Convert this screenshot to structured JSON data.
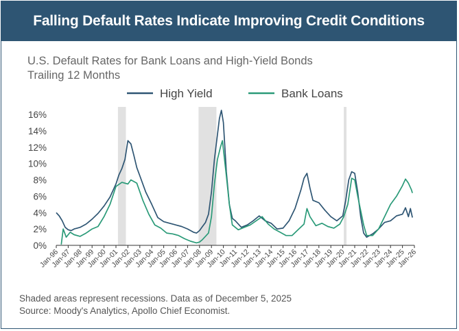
{
  "header": {
    "title": "Falling Default Rates Indicate Improving Credit Conditions"
  },
  "subtitle": {
    "line1": "U.S. Default Rates for Bank Loans and High-Yield Bonds",
    "line2": "Trailing 12 Months"
  },
  "notes": {
    "line1": "Shaded areas represent recessions. Data as of December 5, 2025",
    "line2": "Source: Moody's Analytics, Apollo Chief Economist."
  },
  "colors": {
    "banner": "#2e5573",
    "high_yield": "#2e5573",
    "bank_loans": "#2a9a78",
    "recession": "#e1e1e1"
  },
  "chart_data": {
    "type": "line",
    "title": "U.S. Default Rates for Bank Loans and High-Yield Bonds",
    "subtitle": "Trailing 12 Months",
    "xlabel": "",
    "ylabel": "",
    "xlim": [
      "1996-01",
      "2026-01"
    ],
    "ylim": [
      0,
      16
    ],
    "y_ticks": [
      "0%",
      "2%",
      "4%",
      "6%",
      "8%",
      "10%",
      "12%",
      "14%",
      "16%"
    ],
    "x_ticks": [
      "Jan-96",
      "Jan-97",
      "Jan-98",
      "Jan-99",
      "Jan-00",
      "Jan-01",
      "Jan-02",
      "Jan-03",
      "Jan-04",
      "Jan-05",
      "Jan-06",
      "Jan-07",
      "Jan-08",
      "Jan-09",
      "Jan-10",
      "Jan-11",
      "Jan-12",
      "Jan-13",
      "Jan-14",
      "Jan-15",
      "Jan-16",
      "Jan-17",
      "Jan-18",
      "Jan-19",
      "Jan-20",
      "Jan-21",
      "Jan-22",
      "Jan-23",
      "Jan-24",
      "Jan-25",
      "Jan-26"
    ],
    "legend_position": "top",
    "grid": false,
    "recessions": [
      [
        "2001-03",
        "2001-11"
      ],
      [
        "2007-12",
        "2009-06"
      ],
      [
        "2020-02",
        "2020-04"
      ]
    ],
    "series": [
      {
        "name": "High Yield",
        "points": [
          [
            "1996-01",
            4.0
          ],
          [
            "1996-04",
            3.6
          ],
          [
            "1996-07",
            3.0
          ],
          [
            "1996-10",
            2.2
          ],
          [
            "1997-01",
            1.9
          ],
          [
            "1997-04",
            1.8
          ],
          [
            "1997-07",
            2.0
          ],
          [
            "1997-10",
            2.1
          ],
          [
            "1998-01",
            2.2
          ],
          [
            "1998-07",
            2.6
          ],
          [
            "1999-01",
            3.2
          ],
          [
            "1999-07",
            3.9
          ],
          [
            "2000-01",
            4.8
          ],
          [
            "2000-07",
            5.9
          ],
          [
            "2001-01",
            7.5
          ],
          [
            "2001-04",
            8.6
          ],
          [
            "2001-07",
            9.4
          ],
          [
            "2001-10",
            10.5
          ],
          [
            "2002-01",
            12.8
          ],
          [
            "2002-04",
            12.4
          ],
          [
            "2002-07",
            11.0
          ],
          [
            "2002-10",
            9.5
          ],
          [
            "2003-01",
            8.5
          ],
          [
            "2003-07",
            6.5
          ],
          [
            "2004-01",
            5.0
          ],
          [
            "2004-07",
            3.4
          ],
          [
            "2005-01",
            2.9
          ],
          [
            "2005-07",
            2.7
          ],
          [
            "2006-01",
            2.5
          ],
          [
            "2006-07",
            2.3
          ],
          [
            "2007-01",
            2.0
          ],
          [
            "2007-07",
            1.6
          ],
          [
            "2007-10",
            1.5
          ],
          [
            "2008-01",
            1.8
          ],
          [
            "2008-04",
            2.3
          ],
          [
            "2008-07",
            2.8
          ],
          [
            "2008-10",
            3.8
          ],
          [
            "2009-01",
            6.5
          ],
          [
            "2009-04",
            10.5
          ],
          [
            "2009-07",
            13.5
          ],
          [
            "2009-09",
            15.5
          ],
          [
            "2009-11",
            16.5
          ],
          [
            "2010-01",
            15.0
          ],
          [
            "2010-04",
            9.0
          ],
          [
            "2010-07",
            5.0
          ],
          [
            "2010-10",
            3.3
          ],
          [
            "2011-01",
            3.0
          ],
          [
            "2011-07",
            2.2
          ],
          [
            "2012-01",
            2.5
          ],
          [
            "2012-07",
            3.0
          ],
          [
            "2013-01",
            3.6
          ],
          [
            "2013-07",
            3.0
          ],
          [
            "2014-01",
            2.7
          ],
          [
            "2014-07",
            2.0
          ],
          [
            "2015-01",
            2.1
          ],
          [
            "2015-07",
            3.0
          ],
          [
            "2016-01",
            4.5
          ],
          [
            "2016-07",
            6.8
          ],
          [
            "2016-10",
            8.2
          ],
          [
            "2017-01",
            8.8
          ],
          [
            "2017-04",
            7.0
          ],
          [
            "2017-07",
            5.5
          ],
          [
            "2018-01",
            5.2
          ],
          [
            "2018-07",
            4.3
          ],
          [
            "2019-01",
            3.5
          ],
          [
            "2019-07",
            3.0
          ],
          [
            "2020-01",
            3.6
          ],
          [
            "2020-04",
            5.5
          ],
          [
            "2020-07",
            8.0
          ],
          [
            "2020-10",
            9.0
          ],
          [
            "2021-01",
            8.8
          ],
          [
            "2021-04",
            6.5
          ],
          [
            "2021-07",
            3.5
          ],
          [
            "2021-10",
            1.5
          ],
          [
            "2022-01",
            1.0
          ],
          [
            "2022-07",
            1.4
          ],
          [
            "2023-01",
            2.0
          ],
          [
            "2023-07",
            2.8
          ],
          [
            "2024-01",
            3.0
          ],
          [
            "2024-07",
            3.6
          ],
          [
            "2025-01",
            3.8
          ],
          [
            "2025-04",
            4.6
          ],
          [
            "2025-07",
            3.5
          ],
          [
            "2025-09",
            4.5
          ],
          [
            "2025-11",
            3.4
          ]
        ]
      },
      {
        "name": "Bank Loans",
        "points": [
          [
            "1996-06",
            0.1
          ],
          [
            "1996-08",
            2.0
          ],
          [
            "1996-11",
            1.0
          ],
          [
            "1997-03",
            1.6
          ],
          [
            "1997-07",
            1.3
          ],
          [
            "1998-01",
            1.1
          ],
          [
            "1998-07",
            1.5
          ],
          [
            "1999-01",
            2.0
          ],
          [
            "1999-07",
            2.3
          ],
          [
            "2000-01",
            3.5
          ],
          [
            "2000-07",
            5.0
          ],
          [
            "2001-01",
            7.2
          ],
          [
            "2001-07",
            7.7
          ],
          [
            "2002-01",
            7.5
          ],
          [
            "2002-04",
            8.0
          ],
          [
            "2002-10",
            7.6
          ],
          [
            "2003-04",
            5.5
          ],
          [
            "2003-10",
            3.8
          ],
          [
            "2004-04",
            2.5
          ],
          [
            "2004-10",
            2.1
          ],
          [
            "2005-04",
            1.5
          ],
          [
            "2005-10",
            1.4
          ],
          [
            "2006-04",
            1.2
          ],
          [
            "2006-10",
            0.8
          ],
          [
            "2007-04",
            0.5
          ],
          [
            "2007-10",
            0.3
          ],
          [
            "2008-01",
            0.4
          ],
          [
            "2008-04",
            0.7
          ],
          [
            "2008-10",
            1.5
          ],
          [
            "2009-01",
            3.5
          ],
          [
            "2009-04",
            7.5
          ],
          [
            "2009-07",
            10.5
          ],
          [
            "2009-10",
            12.0
          ],
          [
            "2009-12",
            12.8
          ],
          [
            "2010-04",
            8.5
          ],
          [
            "2010-07",
            5.0
          ],
          [
            "2010-10",
            2.5
          ],
          [
            "2011-04",
            1.9
          ],
          [
            "2011-10",
            2.2
          ],
          [
            "2012-04",
            2.5
          ],
          [
            "2012-10",
            3.0
          ],
          [
            "2013-04",
            3.5
          ],
          [
            "2013-10",
            2.6
          ],
          [
            "2014-04",
            2.0
          ],
          [
            "2014-10",
            1.6
          ],
          [
            "2015-04",
            1.2
          ],
          [
            "2015-10",
            1.2
          ],
          [
            "2016-04",
            1.9
          ],
          [
            "2016-10",
            2.6
          ],
          [
            "2017-01",
            4.5
          ],
          [
            "2017-04",
            3.5
          ],
          [
            "2017-10",
            2.4
          ],
          [
            "2018-04",
            2.7
          ],
          [
            "2018-10",
            2.3
          ],
          [
            "2019-04",
            2.1
          ],
          [
            "2019-10",
            2.6
          ],
          [
            "2020-02",
            3.5
          ],
          [
            "2020-06",
            5.0
          ],
          [
            "2020-10",
            8.2
          ],
          [
            "2021-01",
            8.0
          ],
          [
            "2021-04",
            6.0
          ],
          [
            "2021-10",
            2.5
          ],
          [
            "2022-01",
            1.2
          ],
          [
            "2022-07",
            1.2
          ],
          [
            "2023-01",
            2.0
          ],
          [
            "2023-07",
            3.5
          ],
          [
            "2024-01",
            5.0
          ],
          [
            "2024-07",
            6.0
          ],
          [
            "2025-01",
            7.3
          ],
          [
            "2025-04",
            8.1
          ],
          [
            "2025-07",
            7.6
          ],
          [
            "2025-10",
            6.8
          ],
          [
            "2025-11",
            6.4
          ]
        ]
      }
    ]
  }
}
